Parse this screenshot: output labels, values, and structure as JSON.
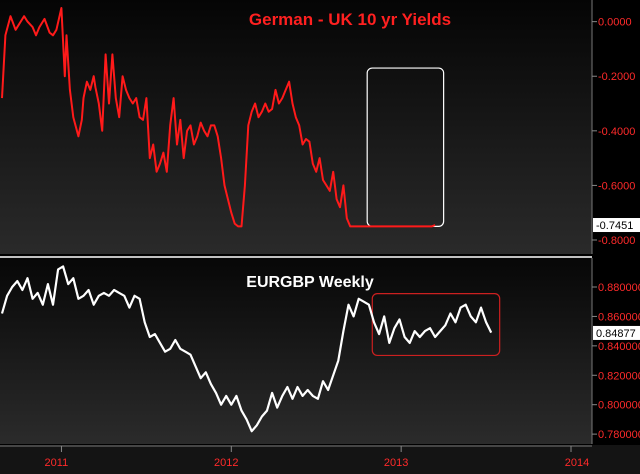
{
  "chart_data": [
    {
      "type": "line",
      "title": "German - UK 10 yr Yields",
      "colors": {
        "line": "#ff1a1a",
        "title": "#ff2020",
        "ticks": "#ff2a2a"
      },
      "ylim": [
        -0.8,
        0.05
      ],
      "y_ticks": [
        "0.0000",
        "-0.2000",
        "-0.4000",
        "-0.6000",
        "-0.8000"
      ],
      "y_tick_values": [
        0,
        -0.2,
        -0.4,
        -0.6,
        -0.8
      ],
      "last_value": -0.7451,
      "last_label": "-0.7451",
      "highlight_box": {
        "x_range": [
          2012.8,
          2013.25
        ],
        "y_range": [
          -0.75,
          -0.17
        ],
        "color": "#ffffff"
      },
      "series": [
        {
          "x": [
            2010.65,
            2010.67,
            2010.7,
            2010.73,
            2010.76,
            2010.78,
            2010.8,
            2010.83,
            2010.85,
            2010.87,
            2010.9,
            2010.93,
            2010.95,
            2010.97,
            2011.0,
            2011.02,
            2011.03,
            2011.05,
            2011.07,
            2011.1,
            2011.12,
            2011.13,
            2011.15,
            2011.17,
            2011.19,
            2011.2,
            2011.22,
            2011.24,
            2011.26,
            2011.28,
            2011.3,
            2011.32,
            2011.34,
            2011.36,
            2011.38,
            2011.4,
            2011.42,
            2011.44,
            2011.46,
            2011.48,
            2011.5,
            2011.52,
            2011.54,
            2011.56,
            2011.58,
            2011.6,
            2011.62,
            2011.64,
            2011.66,
            2011.68,
            2011.7,
            2011.72,
            2011.74,
            2011.76,
            2011.78,
            2011.8,
            2011.82,
            2011.84,
            2011.86,
            2011.88,
            2011.9,
            2011.92,
            2011.94,
            2011.96,
            2011.98,
            2012.0,
            2012.02,
            2012.04,
            2012.06,
            2012.08,
            2012.1,
            2012.12,
            2012.14,
            2012.16,
            2012.18,
            2012.2,
            2012.22,
            2012.24,
            2012.26,
            2012.28,
            2012.3,
            2012.32,
            2012.34,
            2012.36,
            2012.38,
            2012.4,
            2012.42,
            2012.44,
            2012.46,
            2012.48,
            2012.5,
            2012.52,
            2012.54,
            2012.56,
            2012.58,
            2012.6,
            2012.62,
            2012.64,
            2012.66,
            2012.68,
            2012.7,
            2012.72,
            2012.74,
            2012.76,
            2012.78,
            2012.8,
            2012.82,
            2012.84,
            2012.86,
            2012.88,
            2012.9,
            2012.92,
            2012.94,
            2012.96,
            2012.98,
            2013.0,
            2013.02,
            2013.04,
            2013.06,
            2013.08,
            2013.1,
            2013.12,
            2013.14,
            2013.16,
            2013.18,
            2013.2
          ],
          "y": [
            -0.28,
            -0.05,
            0.02,
            -0.03,
            0.0,
            0.02,
            0.0,
            -0.02,
            -0.05,
            -0.02,
            0.01,
            -0.04,
            -0.05,
            -0.03,
            0.05,
            -0.2,
            -0.05,
            -0.25,
            -0.35,
            -0.42,
            -0.36,
            -0.28,
            -0.22,
            -0.25,
            -0.2,
            -0.24,
            -0.3,
            -0.4,
            -0.12,
            -0.3,
            -0.12,
            -0.28,
            -0.35,
            -0.2,
            -0.25,
            -0.28,
            -0.3,
            -0.28,
            -0.35,
            -0.36,
            -0.28,
            -0.5,
            -0.45,
            -0.55,
            -0.52,
            -0.48,
            -0.55,
            -0.38,
            -0.28,
            -0.45,
            -0.36,
            -0.5,
            -0.4,
            -0.38,
            -0.45,
            -0.42,
            -0.37,
            -0.4,
            -0.42,
            -0.38,
            -0.38,
            -0.42,
            -0.5,
            -0.6,
            -0.65,
            -0.7,
            -0.74,
            -0.75,
            -0.75,
            -0.6,
            -0.38,
            -0.33,
            -0.3,
            -0.35,
            -0.33,
            -0.3,
            -0.33,
            -0.32,
            -0.25,
            -0.3,
            -0.28,
            -0.25,
            -0.22,
            -0.3,
            -0.35,
            -0.38,
            -0.45,
            -0.43,
            -0.44,
            -0.52,
            -0.55,
            -0.5,
            -0.58,
            -0.6,
            -0.62,
            -0.55,
            -0.65,
            -0.68,
            -0.6,
            -0.72,
            -0.75,
            -0.75,
            -0.75,
            -0.75,
            -0.75,
            -0.75,
            -0.75,
            -0.75,
            -0.75,
            -0.75,
            -0.75,
            -0.75,
            -0.75,
            -0.75,
            -0.75,
            -0.75,
            -0.75,
            -0.75,
            -0.75,
            -0.75,
            -0.75,
            -0.75,
            -0.75,
            -0.75,
            -0.75,
            -0.7451
          ]
        }
      ]
    },
    {
      "type": "line",
      "title": "EURGBP Weekly",
      "colors": {
        "line": "#ffffff",
        "title": "#ffffff",
        "ticks": "#ff2a2a"
      },
      "ylim": [
        0.776,
        0.897
      ],
      "y_ticks": [
        "0.880000",
        "0.860000",
        "0.840000",
        "0.820000",
        "0.800000",
        "0.780000"
      ],
      "y_tick_values": [
        0.88,
        0.86,
        0.84,
        0.82,
        0.8,
        0.78
      ],
      "last_value": 0.84877,
      "last_label": "0.84877",
      "highlight_box": {
        "x_range": [
          2012.83,
          2013.58
        ],
        "y_range": [
          0.8335,
          0.8755
        ],
        "color": "#cc2020"
      },
      "series": [
        {
          "x": [],
          "y": []
        }
      ]
    }
  ],
  "x_ticks": [
    "2011",
    "2012",
    "2013",
    "2014"
  ],
  "x_tick_values": [
    2011,
    2012,
    2013,
    2014
  ],
  "xlim": [
    2010.65,
    2014.1
  ]
}
